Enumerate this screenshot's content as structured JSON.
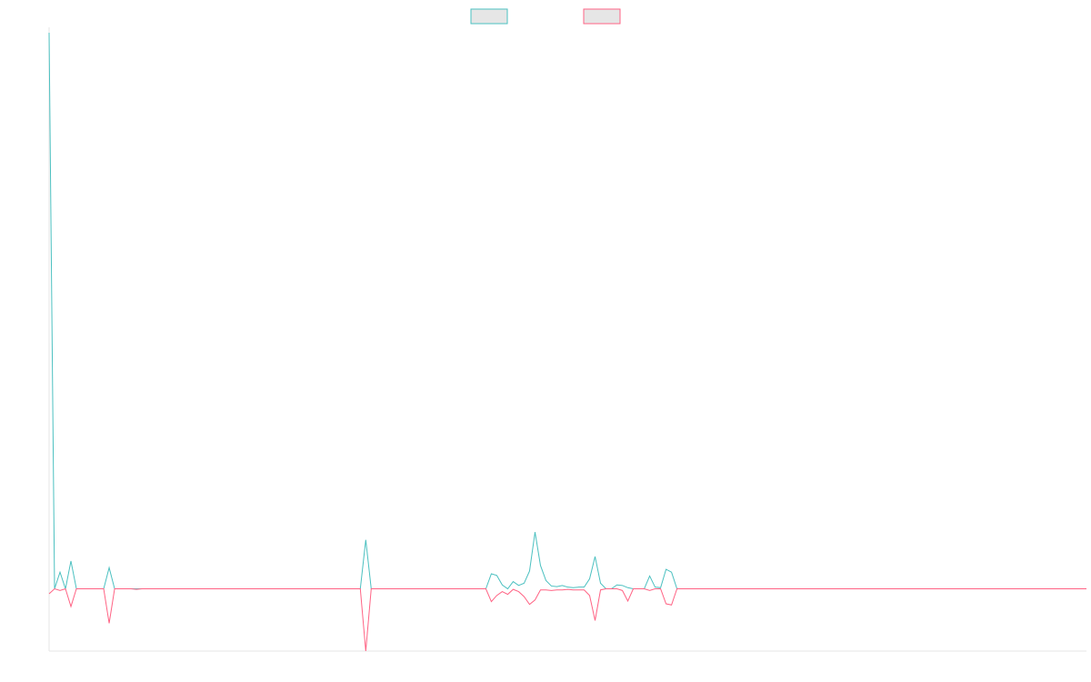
{
  "chart_data": {
    "type": "line",
    "title": "",
    "xlabel": "",
    "ylabel": "",
    "x": [
      0,
      1,
      2,
      3,
      4,
      5,
      6,
      7,
      8,
      9,
      10,
      11,
      12,
      13,
      14,
      15,
      16,
      17,
      18,
      19,
      20,
      21,
      22,
      23,
      24,
      25,
      26,
      27,
      28,
      29,
      30,
      31,
      32,
      33,
      34,
      35,
      36,
      37,
      38,
      39,
      40,
      41,
      42,
      43,
      44,
      45,
      46,
      47,
      48,
      49,
      50,
      51,
      52,
      53,
      54,
      55,
      56,
      57,
      58,
      59,
      60,
      61,
      62,
      63,
      64,
      65,
      66,
      67,
      68,
      69,
      70,
      71,
      72,
      73,
      74,
      75,
      76,
      77,
      78,
      79,
      80,
      81,
      82,
      83,
      84,
      85,
      86,
      87,
      88,
      89,
      90,
      91,
      92,
      93,
      94,
      95,
      96,
      97,
      98,
      99,
      100,
      101,
      102,
      103,
      104,
      105,
      106,
      107,
      108,
      109,
      110,
      111,
      112,
      113,
      114,
      115,
      116,
      117,
      118,
      119,
      120,
      121,
      122,
      123,
      124,
      125,
      126,
      127,
      128,
      129,
      130,
      131,
      132,
      133,
      134,
      135,
      136,
      137,
      138,
      139,
      140,
      141,
      142,
      143,
      144,
      145,
      146,
      147,
      148,
      149,
      150,
      151,
      152,
      153,
      154,
      155,
      156,
      157,
      158,
      159,
      160,
      161,
      162,
      163,
      164,
      165,
      166,
      167,
      168,
      169,
      170,
      171,
      172,
      173,
      174,
      175,
      176,
      177,
      178,
      179,
      180,
      181,
      182,
      183,
      184,
      185,
      186,
      187,
      188,
      189,
      190
    ],
    "series": [
      {
        "color": "#4bc0c0",
        "values": [
          1000,
          0,
          30,
          0,
          50,
          0,
          0,
          0,
          0,
          0,
          0,
          38,
          0,
          0,
          0,
          0,
          0,
          0,
          0,
          0,
          0,
          0,
          0,
          0,
          0,
          0,
          0,
          0,
          0,
          0,
          0,
          0,
          0,
          0,
          0,
          0,
          0,
          0,
          0,
          0,
          0,
          0,
          0,
          0,
          0,
          0,
          0,
          0,
          0,
          0,
          0,
          0,
          0,
          0,
          0,
          0,
          0,
          0,
          88,
          0,
          0,
          0,
          0,
          0,
          0,
          0,
          0,
          0,
          0,
          0,
          0,
          0,
          0,
          0,
          0,
          0,
          0,
          0,
          0,
          0,
          0,
          27,
          24,
          7,
          0,
          13,
          6,
          10,
          32,
          102,
          42,
          15,
          5,
          4,
          6,
          3,
          2,
          3,
          3,
          18,
          58,
          10,
          0,
          0,
          7,
          6,
          2,
          0,
          0,
          0,
          23,
          3,
          2,
          35,
          30,
          0,
          0,
          0,
          0,
          0,
          0,
          0,
          0,
          0,
          0,
          0,
          0,
          0,
          0,
          0,
          0,
          0,
          0,
          0,
          0,
          0,
          0,
          0,
          0,
          0,
          0,
          0,
          0,
          0,
          0,
          0,
          0,
          0,
          0,
          0,
          0,
          0,
          0,
          0,
          0,
          0,
          0,
          0,
          0,
          0,
          0,
          0,
          0,
          0,
          0,
          0,
          0,
          0,
          0,
          0,
          0,
          0,
          0,
          0,
          0,
          0,
          0,
          0,
          0,
          0,
          0,
          0,
          0,
          0,
          0,
          0,
          0,
          0,
          0,
          0,
          0
        ]
      },
      {
        "color": "#ff6384",
        "values": [
          -9,
          0,
          -3,
          0,
          -32,
          0,
          0,
          0,
          0,
          0,
          0,
          -62,
          0,
          0,
          0,
          0,
          -1,
          0,
          0,
          0,
          0,
          0,
          0,
          0,
          0,
          0,
          0,
          0,
          0,
          0,
          0,
          0,
          0,
          0,
          0,
          0,
          0,
          0,
          0,
          0,
          0,
          0,
          0,
          0,
          0,
          0,
          0,
          0,
          0,
          0,
          0,
          0,
          0,
          0,
          0,
          0,
          0,
          0,
          -112,
          0,
          0,
          0,
          0,
          0,
          0,
          0,
          0,
          0,
          0,
          0,
          0,
          0,
          0,
          0,
          0,
          0,
          0,
          0,
          0,
          0,
          0,
          -23,
          -12,
          -5,
          -10,
          -1,
          -5,
          -14,
          -28,
          -20,
          -2,
          -2,
          -3,
          -2,
          -2,
          -1,
          -2,
          -2,
          -2,
          -12,
          -57,
          -2,
          0,
          0,
          0,
          -3,
          -22,
          0,
          0,
          0,
          -3,
          0,
          0,
          -27,
          -29,
          0,
          0,
          0,
          0,
          0,
          0,
          0,
          0,
          0,
          0,
          0,
          0,
          0,
          0,
          0,
          0,
          0,
          0,
          0,
          0,
          0,
          0,
          0,
          0,
          0,
          0,
          0,
          0,
          0,
          0,
          0,
          0,
          0,
          0,
          0,
          0,
          0,
          0,
          0,
          0,
          0,
          0,
          0,
          0,
          0,
          0,
          0,
          0,
          0,
          0,
          0,
          0,
          0,
          0,
          0,
          0,
          0,
          0,
          0,
          0,
          0,
          0,
          0,
          0,
          0,
          0,
          0,
          0,
          0,
          0,
          0,
          0,
          0,
          0,
          0,
          0
        ]
      }
    ],
    "xlim": [
      0,
      190
    ],
    "ylim": [
      -112,
      1000
    ],
    "grid": false,
    "legend_position": "top",
    "legend": [
      {
        "fill": "#e6e6e6",
        "stroke": "#4bc0c0"
      },
      {
        "fill": "#e6e6e6",
        "stroke": "#ff6384"
      }
    ]
  }
}
